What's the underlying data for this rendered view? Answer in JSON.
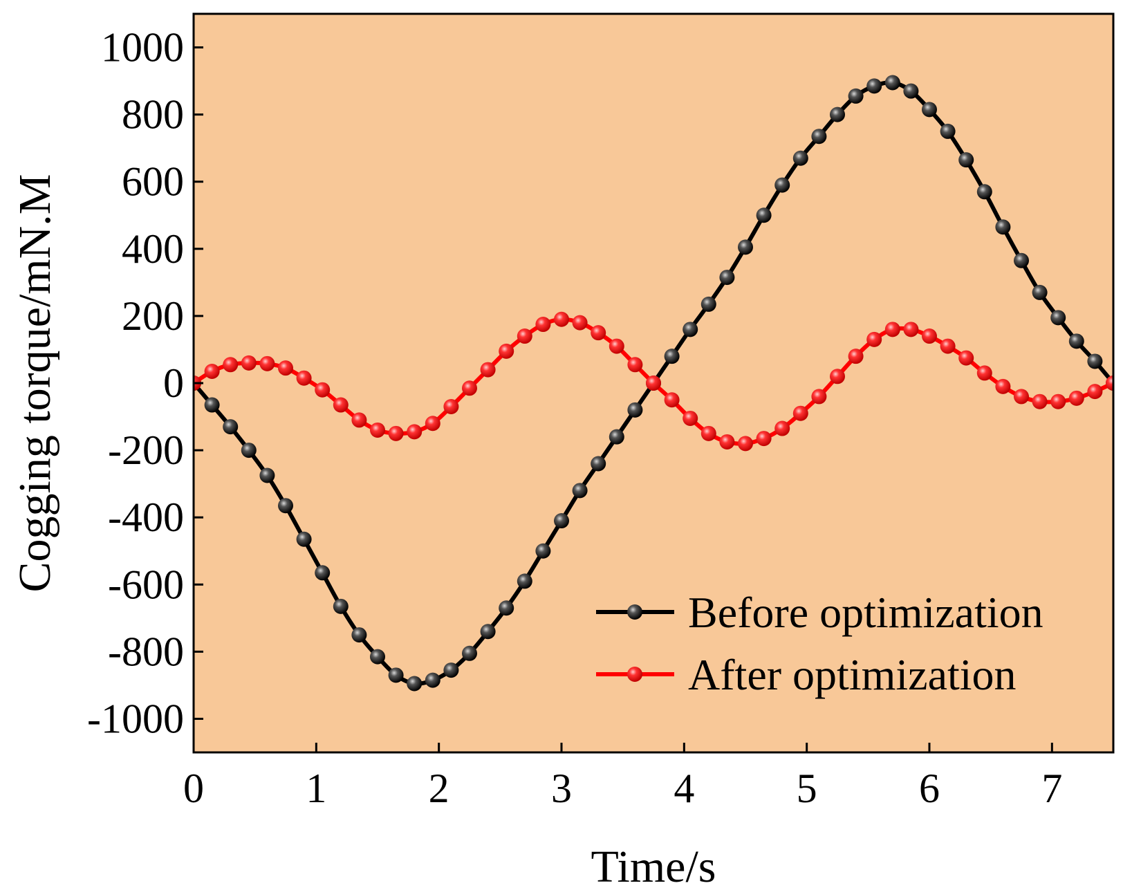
{
  "chart_data": {
    "type": "line",
    "title": "",
    "xlabel": "Time/s",
    "ylabel": "Cogging torque/mN.M",
    "xlim": [
      0,
      7.5
    ],
    "ylim": [
      -1100,
      1100
    ],
    "xticks": [
      0,
      1,
      2,
      3,
      4,
      5,
      6,
      7
    ],
    "yticks": [
      -1000,
      -800,
      -600,
      -400,
      -200,
      0,
      200,
      400,
      600,
      800,
      1000
    ],
    "xtick_labels": [
      "0",
      "1",
      "2",
      "3",
      "4",
      "5",
      "6",
      "7"
    ],
    "ytick_labels": [
      "-1000",
      "-800",
      "-600",
      "-400",
      "-200",
      "0",
      "200",
      "400",
      "600",
      "800",
      "1000"
    ],
    "grid": false,
    "legend_position": "bottom-right",
    "background_color": "#F8C898",
    "series": [
      {
        "name": "Before optimization",
        "color": "#000000",
        "marker": "sphere",
        "x": [
          0,
          0.15,
          0.3,
          0.45,
          0.6,
          0.75,
          0.9,
          1.05,
          1.2,
          1.35,
          1.5,
          1.65,
          1.8,
          1.95,
          2.1,
          2.25,
          2.4,
          2.55,
          2.7,
          2.85,
          3.0,
          3.15,
          3.3,
          3.45,
          3.6,
          3.75,
          3.9,
          4.05,
          4.2,
          4.35,
          4.5,
          4.65,
          4.8,
          4.95,
          5.1,
          5.25,
          5.4,
          5.55,
          5.7,
          5.85,
          6.0,
          6.15,
          6.3,
          6.45,
          6.6,
          6.75,
          6.9,
          7.05,
          7.2,
          7.35,
          7.5
        ],
        "values": [
          0,
          -65,
          -130,
          -200,
          -275,
          -365,
          -465,
          -565,
          -665,
          -750,
          -815,
          -870,
          -895,
          -885,
          -855,
          -805,
          -740,
          -670,
          -590,
          -500,
          -410,
          -320,
          -240,
          -160,
          -80,
          0,
          80,
          160,
          235,
          315,
          405,
          500,
          590,
          670,
          735,
          800,
          855,
          885,
          895,
          870,
          815,
          750,
          665,
          570,
          465,
          365,
          270,
          195,
          125,
          65,
          0
        ]
      },
      {
        "name": "After optimization",
        "color": "#FF0000",
        "marker": "sphere",
        "x": [
          0,
          0.15,
          0.3,
          0.45,
          0.6,
          0.75,
          0.9,
          1.05,
          1.2,
          1.35,
          1.5,
          1.65,
          1.8,
          1.95,
          2.1,
          2.25,
          2.4,
          2.55,
          2.7,
          2.85,
          3.0,
          3.15,
          3.3,
          3.45,
          3.6,
          3.75,
          3.9,
          4.05,
          4.2,
          4.35,
          4.5,
          4.65,
          4.8,
          4.95,
          5.1,
          5.25,
          5.4,
          5.55,
          5.7,
          5.85,
          6.0,
          6.15,
          6.3,
          6.45,
          6.6,
          6.75,
          6.9,
          7.05,
          7.2,
          7.35,
          7.5
        ],
        "values": [
          0,
          35,
          55,
          60,
          58,
          45,
          15,
          -20,
          -65,
          -110,
          -140,
          -150,
          -145,
          -120,
          -70,
          -15,
          40,
          95,
          140,
          175,
          190,
          180,
          150,
          110,
          55,
          0,
          -50,
          -105,
          -150,
          -175,
          -180,
          -165,
          -135,
          -90,
          -40,
          20,
          80,
          130,
          160,
          160,
          140,
          110,
          75,
          30,
          -10,
          -40,
          -55,
          -55,
          -45,
          -25,
          0
        ]
      }
    ]
  }
}
